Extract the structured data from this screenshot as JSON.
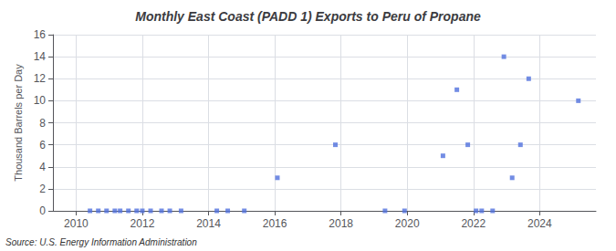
{
  "chart_data": {
    "type": "scatter",
    "title": "Monthly East Coast (PADD 1) Exports to Peru of Propane",
    "ylabel": "Thousand Barrels per Day",
    "source": "Source: U.S. Energy Information Administration",
    "marker": "square",
    "grid": true,
    "xlim": [
      2009.3,
      2025.7
    ],
    "ylim": [
      0,
      16
    ],
    "xticks": [
      2010,
      2012,
      2014,
      2016,
      2018,
      2020,
      2022,
      2024
    ],
    "yticks": [
      0,
      2,
      4,
      6,
      8,
      10,
      12,
      14,
      16
    ],
    "x": [
      2010.42,
      2010.67,
      2010.92,
      2011.17,
      2011.33,
      2011.58,
      2011.83,
      2012.0,
      2012.25,
      2012.58,
      2012.83,
      2013.17,
      2014.25,
      2014.58,
      2015.08,
      2016.08,
      2017.83,
      2019.33,
      2019.92,
      2021.08,
      2021.5,
      2021.83,
      2022.08,
      2022.25,
      2022.58,
      2022.92,
      2023.17,
      2023.42,
      2023.67,
      2025.17
    ],
    "values": [
      0.0,
      0.0,
      0.0,
      0.0,
      0.0,
      0.0,
      0.0,
      0.0,
      0.0,
      0.0,
      0.0,
      0.0,
      0.0,
      0.0,
      0.0,
      3.0,
      6.0,
      0.0,
      0.0,
      5.0,
      11.0,
      6.0,
      0.0,
      0.0,
      0.0,
      14.0,
      3.0,
      6.0,
      12.0,
      10.0
    ]
  }
}
